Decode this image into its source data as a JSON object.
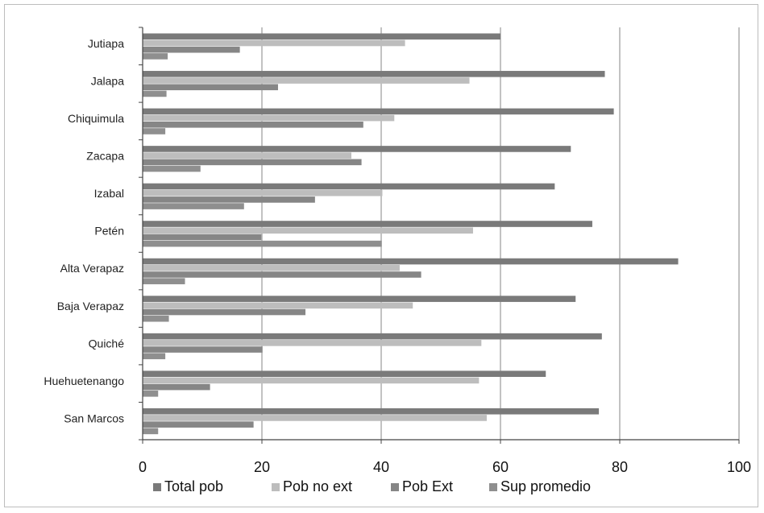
{
  "chart_data": {
    "type": "bar",
    "orientation": "horizontal",
    "categories": [
      "Jutiapa",
      "Jalapa",
      "Chiquimula",
      "Zacapa",
      "Izabal",
      "Petén",
      "Alta Verapaz",
      "Baja Verapaz",
      "Quiché",
      "Huehuetenango",
      "San Marcos"
    ],
    "series": [
      {
        "name": "Total pob",
        "color": "#7a7a7a",
        "values": [
          60,
          77.5,
          79,
          71.8,
          69.1,
          75.4,
          89.8,
          72.6,
          77,
          67.6,
          76.5
        ]
      },
      {
        "name": "Pob no ext",
        "color": "#bdbdbd",
        "values": [
          44,
          54.8,
          42.2,
          35,
          40.2,
          55.4,
          43.1,
          45.3,
          56.8,
          56.4,
          57.7
        ]
      },
      {
        "name": "Pob Ext",
        "color": "#868686",
        "values": [
          16.3,
          22.7,
          37,
          36.7,
          28.9,
          19.9,
          46.7,
          27.3,
          20.1,
          11.3,
          18.6
        ]
      },
      {
        "name": "Sup promedio",
        "color": "#8f8f8f",
        "values": [
          4.2,
          4,
          3.8,
          9.7,
          17,
          40.1,
          7.1,
          4.4,
          3.8,
          2.6,
          2.6
        ]
      }
    ],
    "xlim": [
      0,
      100
    ],
    "xticks": [
      "0",
      "20",
      "40",
      "60",
      "80",
      "100"
    ],
    "grid": true,
    "legend_position": "bottom",
    "title": "",
    "xlabel": "",
    "ylabel": ""
  }
}
